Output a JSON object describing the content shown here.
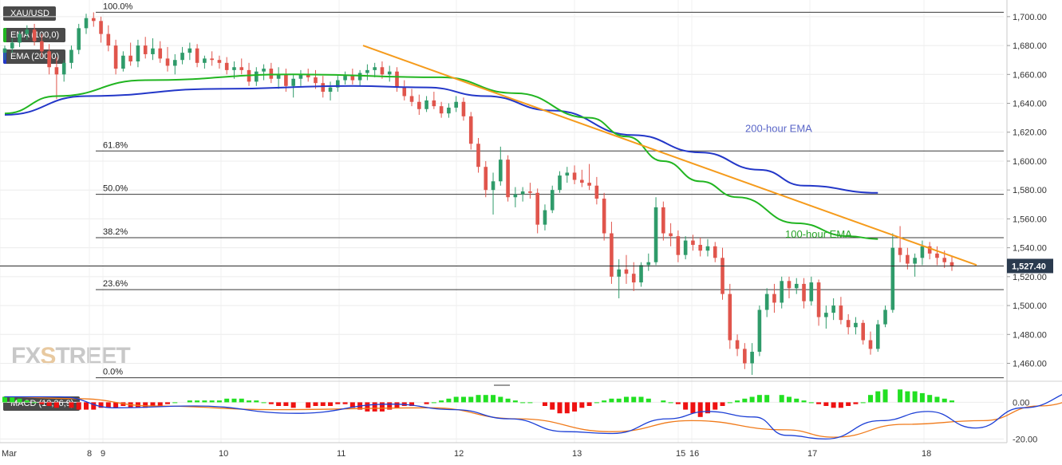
{
  "chart_data": {
    "type": "candlestick",
    "symbol": "XAU/USD",
    "x_ticks": [
      "Mar",
      "8",
      "9",
      "10",
      "11",
      "12",
      "13",
      "15",
      "16",
      "17",
      "18"
    ],
    "y_ticks": [
      "1,700.00",
      "1,680.00",
      "1,660.00",
      "1,640.00",
      "1,620.00",
      "1,600.00",
      "1,580.00",
      "1,560.00",
      "1,540.00",
      "1,520.00",
      "1,500.00",
      "1,480.00",
      "1,460.00"
    ],
    "ylim": [
      1452,
      1706
    ],
    "last_price": "1,527.40",
    "series": [
      {
        "name": "EMA (100,0)",
        "color": "#21b521"
      },
      {
        "name": "EMA (200,0)",
        "color": "#2337c8"
      }
    ],
    "annotations": [
      "200-hour EMA",
      "100-hour EMA"
    ],
    "fibonacci_levels": [
      {
        "label": "100.0%",
        "value": 1703
      },
      {
        "label": "61.8%",
        "value": 1607
      },
      {
        "label": "50.0%",
        "value": 1577
      },
      {
        "label": "38.2%",
        "value": 1547
      },
      {
        "label": "23.6%",
        "value": 1511
      },
      {
        "label": "0.0%",
        "value": 1450
      }
    ],
    "trendline": {
      "start": {
        "date": "Mar 11",
        "value": 1680
      },
      "end": {
        "date": "Mar 18",
        "value": 1528
      },
      "color": "#f59b1c"
    },
    "ema100": [
      [
        1,
        1633
      ],
      [
        8,
        1645
      ],
      [
        20,
        1656
      ],
      [
        40,
        1660
      ],
      [
        60,
        1658
      ],
      [
        70,
        1647
      ],
      [
        80,
        1630
      ],
      [
        85,
        1617
      ],
      [
        90,
        1600
      ],
      [
        95,
        1586
      ],
      [
        100,
        1575
      ],
      [
        108,
        1557
      ],
      [
        115,
        1548
      ],
      [
        119,
        1546
      ]
    ],
    "ema200": [
      [
        1,
        1632
      ],
      [
        12,
        1645
      ],
      [
        30,
        1650
      ],
      [
        48,
        1652
      ],
      [
        58,
        1651
      ],
      [
        66,
        1645
      ],
      [
        75,
        1635
      ],
      [
        86,
        1618
      ],
      [
        95,
        1606
      ],
      [
        103,
        1594
      ],
      [
        109,
        1583
      ],
      [
        119,
        1578
      ]
    ],
    "candles": [
      [
        1675,
        1680,
        1670,
        1678
      ],
      [
        1678,
        1685,
        1675,
        1682
      ],
      [
        1682,
        1690,
        1679,
        1688
      ],
      [
        1688,
        1694,
        1684,
        1691
      ],
      [
        1691,
        1695,
        1680,
        1683
      ],
      [
        1683,
        1688,
        1672,
        1676
      ],
      [
        1676,
        1681,
        1660,
        1665
      ],
      [
        1665,
        1672,
        1643,
        1660
      ],
      [
        1660,
        1670,
        1655,
        1668
      ],
      [
        1668,
        1680,
        1664,
        1677
      ],
      [
        1677,
        1695,
        1674,
        1692
      ],
      [
        1692,
        1702,
        1688,
        1699
      ],
      [
        1699,
        1703,
        1693,
        1697
      ],
      [
        1697,
        1700,
        1682,
        1688
      ],
      [
        1688,
        1694,
        1676,
        1680
      ],
      [
        1680,
        1684,
        1660,
        1664
      ],
      [
        1664,
        1676,
        1662,
        1673
      ],
      [
        1673,
        1682,
        1666,
        1669
      ],
      [
        1669,
        1684,
        1665,
        1680
      ],
      [
        1680,
        1686,
        1671,
        1674
      ],
      [
        1674,
        1685,
        1670,
        1678
      ],
      [
        1678,
        1683,
        1668,
        1671
      ],
      [
        1671,
        1679,
        1662,
        1666
      ],
      [
        1666,
        1674,
        1660,
        1670
      ],
      [
        1670,
        1679,
        1667,
        1675
      ],
      [
        1675,
        1682,
        1670,
        1678
      ],
      [
        1678,
        1681,
        1665,
        1668
      ],
      [
        1668,
        1673,
        1664,
        1671
      ],
      [
        1671,
        1676,
        1666,
        1670
      ],
      [
        1670,
        1673,
        1664,
        1668
      ],
      [
        1668,
        1672,
        1660,
        1663
      ],
      [
        1663,
        1669,
        1657,
        1665
      ],
      [
        1665,
        1671,
        1660,
        1663
      ],
      [
        1663,
        1668,
        1652,
        1655
      ],
      [
        1655,
        1665,
        1652,
        1662
      ],
      [
        1662,
        1667,
        1656,
        1664
      ],
      [
        1664,
        1668,
        1654,
        1657
      ],
      [
        1657,
        1665,
        1650,
        1660
      ],
      [
        1660,
        1664,
        1648,
        1652
      ],
      [
        1652,
        1660,
        1644,
        1657
      ],
      [
        1657,
        1663,
        1652,
        1660
      ],
      [
        1660,
        1664,
        1655,
        1658
      ],
      [
        1658,
        1663,
        1650,
        1654
      ],
      [
        1654,
        1659,
        1644,
        1648
      ],
      [
        1648,
        1655,
        1642,
        1651
      ],
      [
        1651,
        1659,
        1648,
        1656
      ],
      [
        1656,
        1662,
        1653,
        1659
      ],
      [
        1659,
        1664,
        1653,
        1656
      ],
      [
        1656,
        1663,
        1652,
        1661
      ],
      [
        1661,
        1667,
        1656,
        1663
      ],
      [
        1663,
        1668,
        1658,
        1665
      ],
      [
        1665,
        1669,
        1657,
        1660
      ],
      [
        1660,
        1666,
        1655,
        1662
      ],
      [
        1662,
        1665,
        1648,
        1651
      ],
      [
        1651,
        1656,
        1642,
        1645
      ],
      [
        1645,
        1650,
        1638,
        1641
      ],
      [
        1641,
        1646,
        1632,
        1636
      ],
      [
        1636,
        1645,
        1634,
        1642
      ],
      [
        1642,
        1648,
        1636,
        1638
      ],
      [
        1638,
        1641,
        1630,
        1633
      ],
      [
        1633,
        1640,
        1630,
        1637
      ],
      [
        1637,
        1645,
        1634,
        1641
      ],
      [
        1641,
        1644,
        1628,
        1631
      ],
      [
        1631,
        1634,
        1608,
        1612
      ],
      [
        1612,
        1616,
        1592,
        1596
      ],
      [
        1596,
        1600,
        1575,
        1580
      ],
      [
        1580,
        1592,
        1563,
        1586
      ],
      [
        1586,
        1610,
        1583,
        1601
      ],
      [
        1601,
        1604,
        1572,
        1575
      ],
      [
        1575,
        1582,
        1568,
        1577
      ],
      [
        1577,
        1582,
        1572,
        1579
      ],
      [
        1579,
        1585,
        1574,
        1578
      ],
      [
        1578,
        1581,
        1550,
        1556
      ],
      [
        1556,
        1570,
        1552,
        1566
      ],
      [
        1566,
        1583,
        1564,
        1580
      ],
      [
        1580,
        1593,
        1578,
        1590
      ],
      [
        1590,
        1596,
        1585,
        1592
      ],
      [
        1592,
        1597,
        1584,
        1587
      ],
      [
        1587,
        1594,
        1582,
        1585
      ],
      [
        1585,
        1598,
        1580,
        1583
      ],
      [
        1583,
        1589,
        1570,
        1574
      ],
      [
        1574,
        1578,
        1545,
        1550
      ],
      [
        1550,
        1558,
        1515,
        1520
      ],
      [
        1520,
        1532,
        1505,
        1525
      ],
      [
        1525,
        1535,
        1515,
        1522
      ],
      [
        1522,
        1530,
        1510,
        1516
      ],
      [
        1516,
        1530,
        1513,
        1528
      ],
      [
        1528,
        1536,
        1524,
        1530
      ],
      [
        1530,
        1575,
        1528,
        1568
      ],
      [
        1568,
        1572,
        1545,
        1550
      ],
      [
        1550,
        1557,
        1541,
        1548
      ],
      [
        1548,
        1552,
        1530,
        1535
      ],
      [
        1535,
        1548,
        1532,
        1545
      ],
      [
        1545,
        1549,
        1538,
        1542
      ],
      [
        1542,
        1547,
        1534,
        1538
      ],
      [
        1538,
        1546,
        1534,
        1541
      ],
      [
        1541,
        1544,
        1530,
        1533
      ],
      [
        1533,
        1540,
        1504,
        1508
      ],
      [
        1508,
        1515,
        1470,
        1476
      ],
      [
        1476,
        1480,
        1465,
        1470
      ],
      [
        1470,
        1474,
        1456,
        1460
      ],
      [
        1460,
        1474,
        1452,
        1468
      ],
      [
        1468,
        1500,
        1465,
        1497
      ],
      [
        1497,
        1512,
        1492,
        1508
      ],
      [
        1508,
        1515,
        1495,
        1502
      ],
      [
        1502,
        1520,
        1498,
        1517
      ],
      [
        1517,
        1520,
        1505,
        1512
      ],
      [
        1512,
        1519,
        1508,
        1515
      ],
      [
        1515,
        1519,
        1498,
        1503
      ],
      [
        1503,
        1520,
        1500,
        1516
      ],
      [
        1516,
        1518,
        1486,
        1492
      ],
      [
        1492,
        1500,
        1484,
        1495
      ],
      [
        1495,
        1505,
        1490,
        1500
      ],
      [
        1500,
        1506,
        1487,
        1490
      ],
      [
        1490,
        1494,
        1480,
        1485
      ],
      [
        1485,
        1492,
        1480,
        1488
      ],
      [
        1488,
        1490,
        1473,
        1476
      ],
      [
        1476,
        1482,
        1466,
        1470
      ],
      [
        1470,
        1490,
        1468,
        1487
      ],
      [
        1487,
        1500,
        1485,
        1497
      ],
      [
        1497,
        1550,
        1495,
        1540
      ],
      [
        1540,
        1555,
        1530,
        1535
      ],
      [
        1535,
        1540,
        1525,
        1529
      ],
      [
        1529,
        1536,
        1520,
        1533
      ],
      [
        1533,
        1545,
        1528,
        1541
      ],
      [
        1541,
        1544,
        1532,
        1536
      ],
      [
        1536,
        1541,
        1528,
        1533
      ],
      [
        1533,
        1538,
        1526,
        1530
      ],
      [
        1530,
        1534,
        1524,
        1527
      ]
    ],
    "indicator": {
      "name": "MACD (12,26,9)",
      "y_ticks": [
        "0.00",
        "-20.00"
      ],
      "ylim": [
        -22,
        8
      ],
      "histogram": [
        3,
        3,
        2,
        1,
        0,
        -1,
        -2,
        -3,
        -3,
        -4,
        -4,
        -4,
        -3,
        -3,
        -3,
        -2,
        -3,
        -3,
        -3,
        -2,
        -2,
        -1,
        0,
        1,
        1,
        1,
        1,
        1,
        2,
        2,
        2,
        1,
        1,
        0,
        -1,
        -2,
        -2,
        -3,
        -3,
        -2,
        -2,
        -2,
        -1,
        -1,
        -3,
        -4,
        -5,
        -5,
        -5,
        -4,
        -3,
        -2,
        -2,
        -1,
        0,
        1,
        2,
        3,
        3,
        3,
        4,
        4,
        4,
        3,
        2,
        1,
        0,
        0,
        -2,
        -4,
        -6,
        -6,
        -5,
        -3,
        -2,
        0,
        1,
        2,
        2,
        3,
        3,
        3,
        2,
        1,
        0,
        -1,
        -4,
        -6,
        -8,
        -6,
        -4,
        -2,
        0,
        1,
        2,
        3,
        4,
        4,
        4,
        3,
        2,
        1,
        0,
        -1,
        -2,
        -3,
        -3,
        -2,
        -1,
        0,
        4,
        6,
        7,
        7,
        6,
        6,
        5,
        4,
        3,
        2,
        1
      ],
      "macd": [
        [
          1,
          3
        ],
        [
          8,
          3
        ],
        [
          15,
          -3
        ],
        [
          25,
          -2
        ],
        [
          38,
          -6
        ],
        [
          50,
          -1
        ],
        [
          58,
          -4
        ],
        [
          65,
          -9
        ],
        [
          72,
          -16
        ],
        [
          78,
          -17
        ],
        [
          85,
          -9
        ],
        [
          90,
          -5
        ],
        [
          96,
          -8
        ],
        [
          100,
          -18
        ],
        [
          105,
          -20
        ],
        [
          112,
          -10
        ],
        [
          118,
          -5
        ],
        [
          124,
          -14
        ],
        [
          130,
          -3
        ],
        [
          138,
          7
        ],
        [
          142,
          6
        ]
      ],
      "signal": [
        [
          1,
          3
        ],
        [
          10,
          2
        ],
        [
          20,
          -2
        ],
        [
          35,
          -4
        ],
        [
          55,
          -3
        ],
        [
          66,
          -9
        ],
        [
          78,
          -16
        ],
        [
          88,
          -10
        ],
        [
          100,
          -15
        ],
        [
          106,
          -19
        ],
        [
          115,
          -12
        ],
        [
          125,
          -10
        ],
        [
          132,
          -2
        ],
        [
          140,
          5
        ],
        [
          142,
          5
        ]
      ]
    }
  }
}
